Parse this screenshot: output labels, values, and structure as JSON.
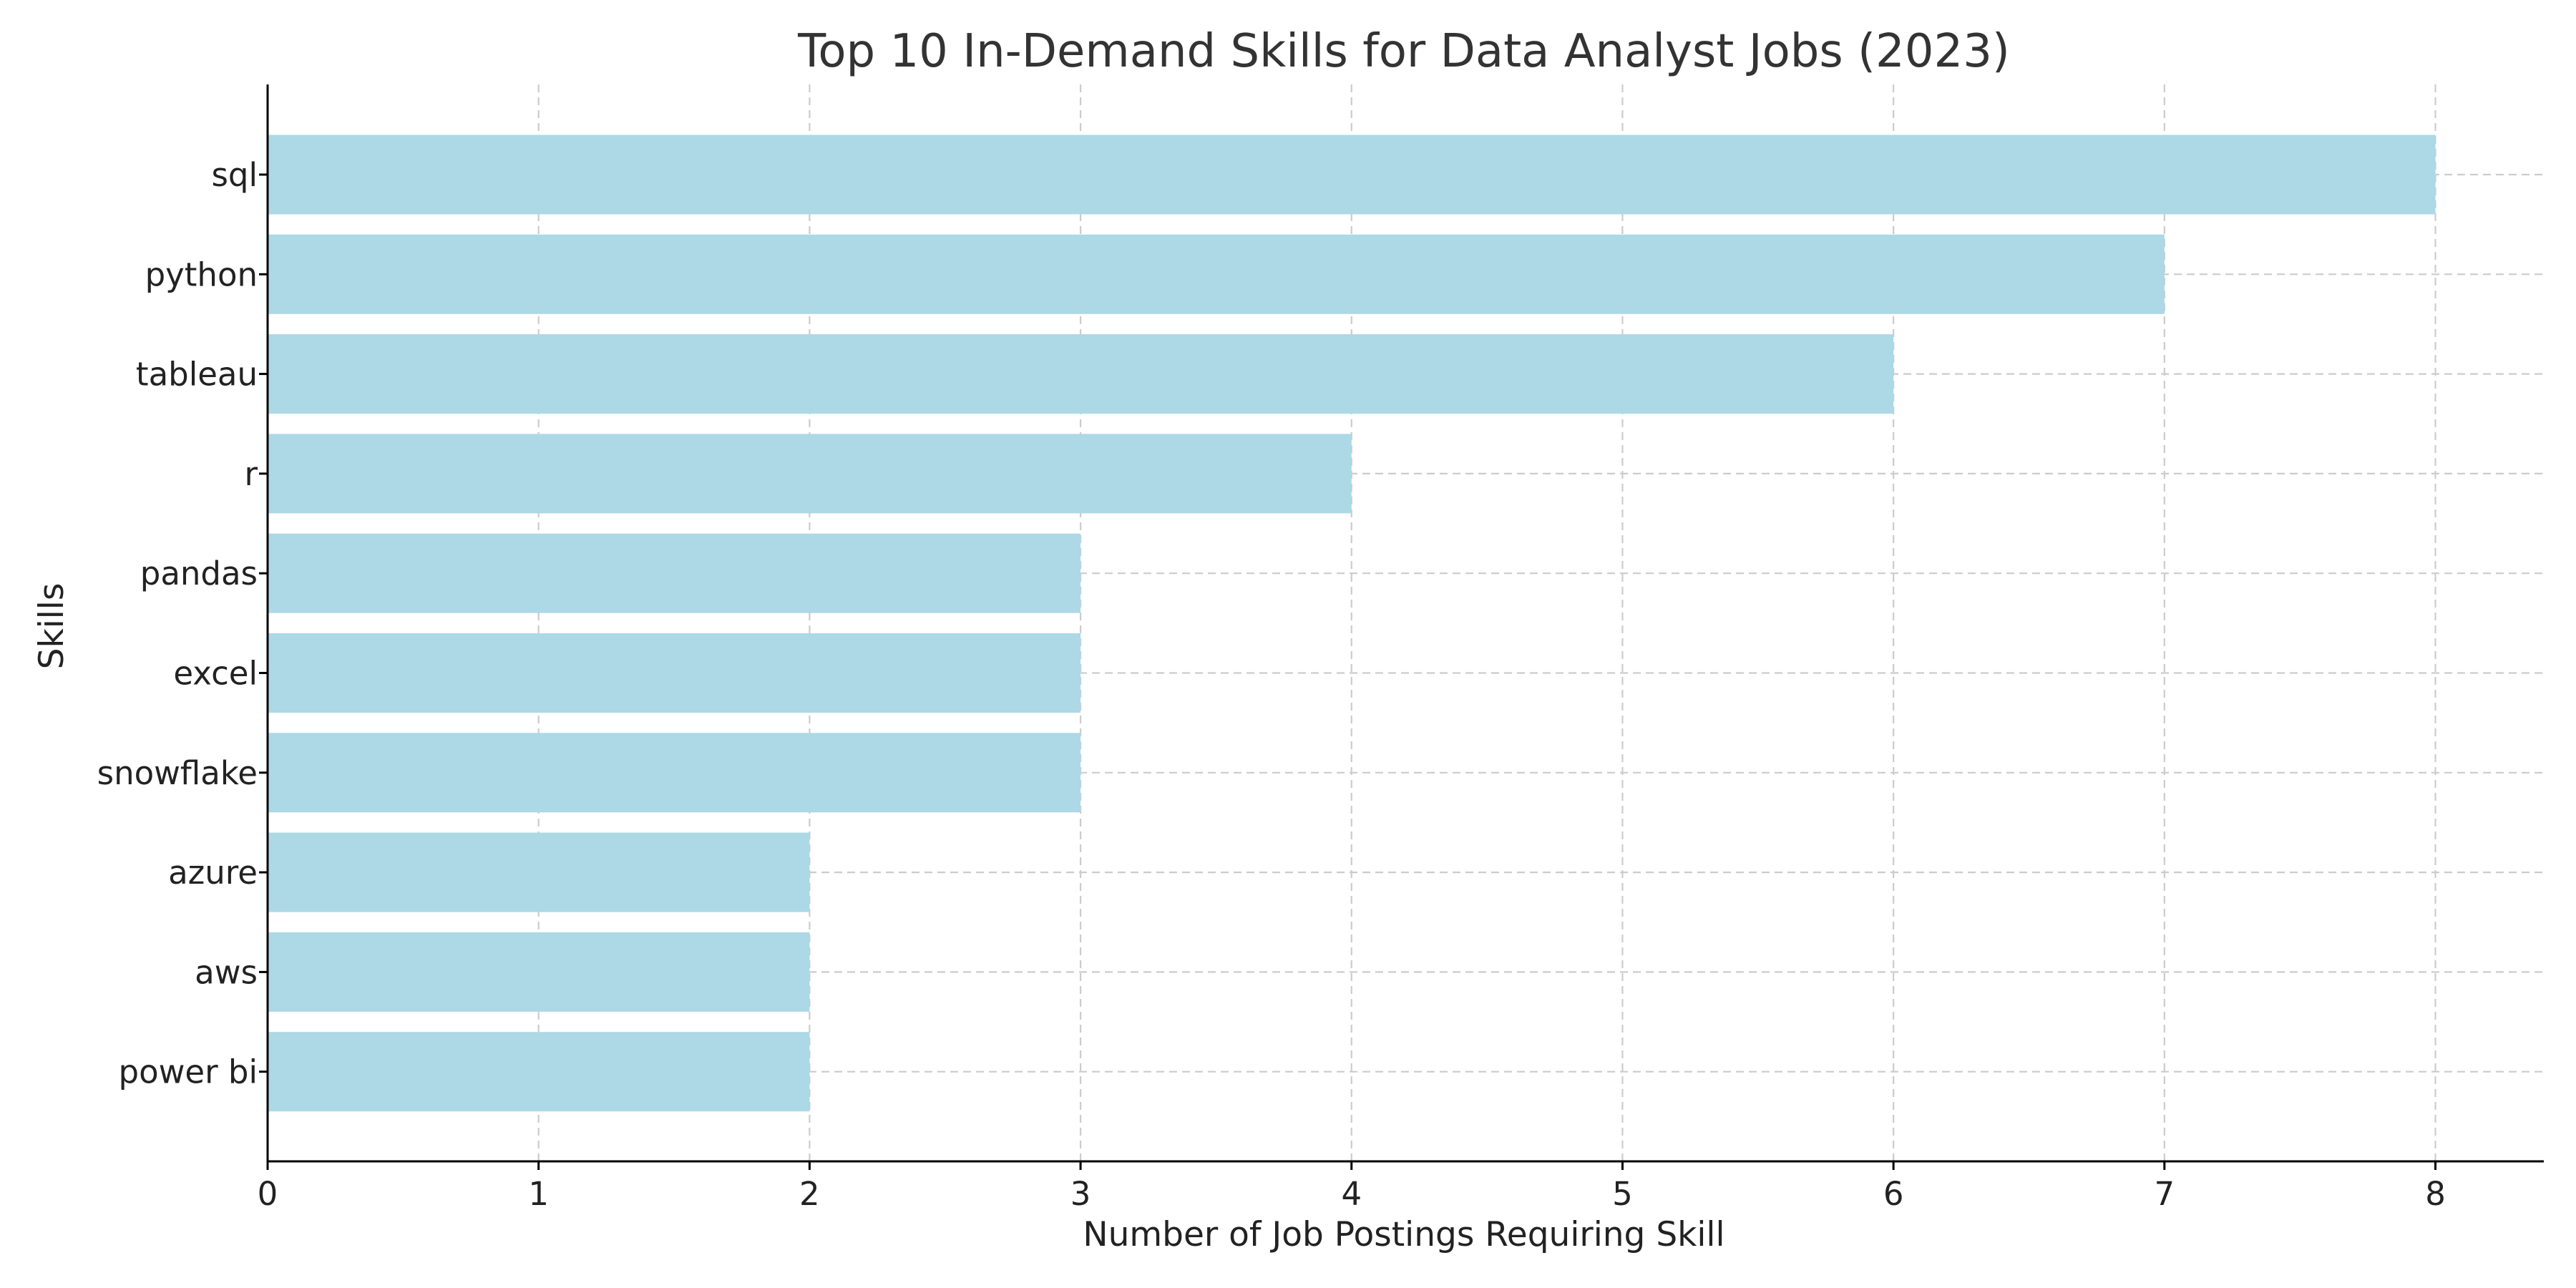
{
  "chart_data": {
    "type": "bar",
    "orientation": "horizontal",
    "title": "Top 10 In-Demand Skills for Data Analyst Jobs (2023)",
    "xlabel": "Number of Job Postings Requiring Skill",
    "ylabel": "Skills",
    "categories": [
      "sql",
      "python",
      "tableau",
      "r",
      "pandas",
      "excel",
      "snowflake",
      "azure",
      "aws",
      "power bi"
    ],
    "values": [
      8,
      7,
      6,
      4,
      3,
      3,
      3,
      2,
      2,
      2
    ],
    "xlim": [
      0,
      8.4
    ],
    "xticks": [
      0,
      1,
      2,
      3,
      4,
      5,
      6,
      7,
      8
    ],
    "grid": true,
    "bar_color": "#add8e6",
    "legend": null
  }
}
